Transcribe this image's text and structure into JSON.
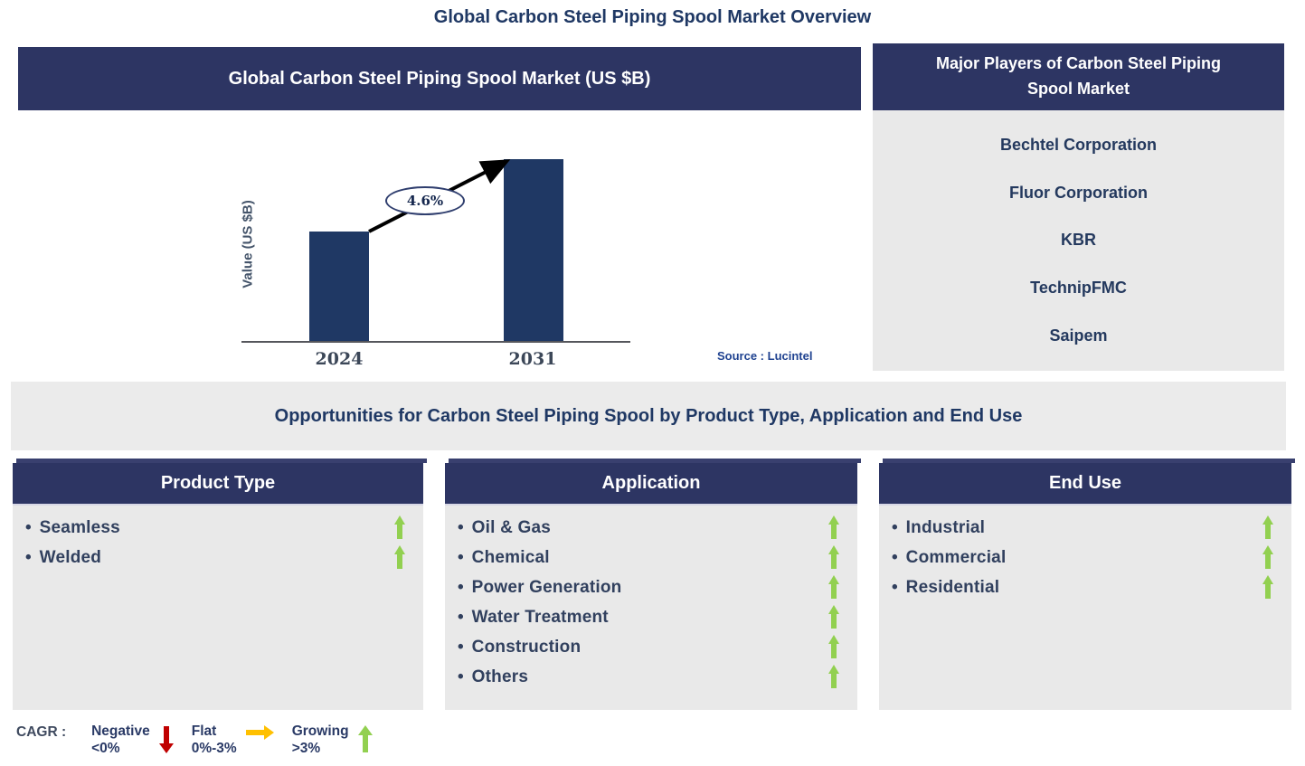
{
  "page_title": "Global Carbon Steel Piping Spool Market Overview",
  "chart_panel": {
    "header": "Global Carbon Steel Piping Spool Market (US $B)",
    "source": "Source : Lucintel"
  },
  "chart_data": {
    "type": "bar",
    "title": "Global Carbon Steel Piping Spool Market (US $B)",
    "xlabel": "",
    "ylabel": "Value (US $B)",
    "categories": [
      "2024",
      "2031"
    ],
    "values_relative": [
      0.6,
      1.0
    ],
    "value_axis_ticks_shown": false,
    "grid": false,
    "legend_position": "none",
    "cagr_annotation": "4.6%",
    "bar_color": "#1F3864",
    "annotation_arrow": "black arrow from top of 2024 bar to top of 2031 bar"
  },
  "players_panel": {
    "title": "Major Players of Carbon Steel Piping Spool Market",
    "players": [
      "Bechtel Corporation",
      "Fluor Corporation",
      "KBR",
      "TechnipFMC",
      "Saipem"
    ]
  },
  "opportunities_banner": "Opportunities for Carbon Steel Piping Spool by Product Type, Application and End Use",
  "opportunity_panels": [
    {
      "title": "Product Type",
      "items": [
        "Seamless",
        "Welded"
      ]
    },
    {
      "title": "Application",
      "items": [
        "Oil & Gas",
        "Chemical",
        "Power Generation",
        "Water Treatment",
        "Construction",
        "Others"
      ]
    },
    {
      "title": "End Use",
      "items": [
        "Industrial",
        "Commercial",
        "Residential"
      ]
    }
  ],
  "legend": {
    "label": "CAGR :",
    "entries": [
      {
        "name": "Negative",
        "range": "<0%",
        "direction": "down",
        "color": "#C00000"
      },
      {
        "name": "Flat",
        "range": "0%-3%",
        "direction": "right",
        "color": "#FFC000"
      },
      {
        "name": "Growing",
        "range": ">3%",
        "direction": "up",
        "color": "#92D050"
      }
    ]
  },
  "glyphs": {
    "bullet": "•"
  },
  "colors": {
    "header_navy": "#2D3563",
    "panel_gray": "#E9E9E9",
    "banner_gray": "#EBEBEB",
    "bar_navy": "#1F3864",
    "title_navy": "#1F3864",
    "growing_green": "#92D050",
    "flat_yellow": "#FFC000",
    "negative_red": "#C00000"
  }
}
